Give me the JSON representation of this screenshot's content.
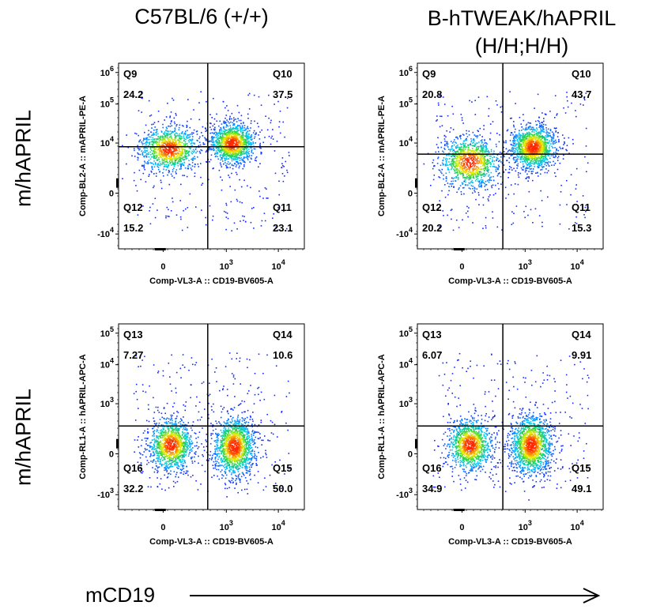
{
  "column_titles": [
    "C57BL/6 (+/+)",
    "B-hTWEAK/hAPRIL\n(H/H;H/H)"
  ],
  "row_titles": [
    "m/hAPRIL",
    "m/hAPRIL"
  ],
  "bottom_axis_label": "mCD19",
  "colors": {
    "frame": "#000000",
    "text": "#000000",
    "density_low": "#1f1fff",
    "density_high": "#ff2a00"
  },
  "chart_data": [
    {
      "type": "scatter",
      "subtype": "flow-cytometry-density",
      "panel": "C57BL/6 (+/+) row1",
      "xlabel": "Comp-VL3-A :: CD19-BV605-A",
      "ylabel": "Comp-BL2-A :: mAPRIL-PE-A",
      "x_ticks": [
        "0",
        "10^3",
        "10^4"
      ],
      "y_ticks": [
        "10^6",
        "10^5",
        "10^4",
        "0",
        "-10^4"
      ],
      "quadrants": [
        {
          "name": "Q9",
          "value": "24.2"
        },
        {
          "name": "Q10",
          "value": "37.5"
        },
        {
          "name": "Q11",
          "value": "23.1"
        },
        {
          "name": "Q12",
          "value": "15.2"
        }
      ],
      "gate": {
        "x_frac": 0.48,
        "y_frac": 0.45
      },
      "populations": [
        {
          "cx": 0.27,
          "cy": 0.46,
          "sx": 0.08,
          "sy": 0.06,
          "n": 1000
        },
        {
          "cx": 0.61,
          "cy": 0.43,
          "sx": 0.06,
          "sy": 0.055,
          "n": 1200
        }
      ],
      "grid": false
    },
    {
      "type": "scatter",
      "subtype": "flow-cytometry-density",
      "panel": "B-hTWEAK/hAPRIL (H/H;H/H) row1",
      "xlabel": "Comp-VL3-A :: CD19-BV605-A",
      "ylabel": "Comp-BL2-A :: mAPRIL-PE-A",
      "x_ticks": [
        "0",
        "10^3",
        "10^4"
      ],
      "y_ticks": [
        "10^6",
        "10^5",
        "10^4",
        "0",
        "-10^4"
      ],
      "quadrants": [
        {
          "name": "Q9",
          "value": "20.8"
        },
        {
          "name": "Q10",
          "value": "43.7"
        },
        {
          "name": "Q11",
          "value": "15.3"
        },
        {
          "name": "Q12",
          "value": "20.2"
        }
      ],
      "gate": {
        "x_frac": 0.46,
        "y_frac": 0.49
      },
      "populations": [
        {
          "cx": 0.28,
          "cy": 0.53,
          "sx": 0.08,
          "sy": 0.07,
          "n": 1000
        },
        {
          "cx": 0.62,
          "cy": 0.45,
          "sx": 0.06,
          "sy": 0.06,
          "n": 1300
        }
      ],
      "grid": false
    },
    {
      "type": "scatter",
      "subtype": "flow-cytometry-density",
      "panel": "C57BL/6 (+/+) row2",
      "xlabel": "Comp-VL3-A :: CD19-BV605-A",
      "ylabel": "Comp-RL1-A :: hAPRIL-APC-A",
      "x_ticks": [
        "0",
        "10^3",
        "10^4"
      ],
      "y_ticks": [
        "10^5",
        "10^4",
        "10^3",
        "0",
        "-10^3"
      ],
      "quadrants": [
        {
          "name": "Q13",
          "value": "7.27"
        },
        {
          "name": "Q14",
          "value": "10.6"
        },
        {
          "name": "Q15",
          "value": "50.0"
        },
        {
          "name": "Q16",
          "value": "32.2"
        }
      ],
      "gate": {
        "x_frac": 0.48,
        "y_frac": 0.55
      },
      "populations": [
        {
          "cx": 0.28,
          "cy": 0.65,
          "sx": 0.06,
          "sy": 0.07,
          "n": 1100
        },
        {
          "cx": 0.62,
          "cy": 0.66,
          "sx": 0.055,
          "sy": 0.08,
          "n": 1400
        }
      ],
      "grid": false
    },
    {
      "type": "scatter",
      "subtype": "flow-cytometry-density",
      "panel": "B-hTWEAK/hAPRIL (H/H;H/H) row2",
      "xlabel": "Comp-VL3-A :: CD19-BV605-A",
      "ylabel": "Comp-RL1-A :: hAPRIL-APC-A",
      "x_ticks": [
        "0",
        "10^3",
        "10^4"
      ],
      "y_ticks": [
        "10^5",
        "10^4",
        "10^3",
        "0",
        "-10^3"
      ],
      "quadrants": [
        {
          "name": "Q13",
          "value": "6.07"
        },
        {
          "name": "Q14",
          "value": "9.91"
        },
        {
          "name": "Q15",
          "value": "49.1"
        },
        {
          "name": "Q16",
          "value": "34.9"
        }
      ],
      "gate": {
        "x_frac": 0.46,
        "y_frac": 0.55
      },
      "populations": [
        {
          "cx": 0.28,
          "cy": 0.65,
          "sx": 0.06,
          "sy": 0.07,
          "n": 1100
        },
        {
          "cx": 0.61,
          "cy": 0.65,
          "sx": 0.055,
          "sy": 0.08,
          "n": 1400
        }
      ],
      "grid": false
    }
  ]
}
